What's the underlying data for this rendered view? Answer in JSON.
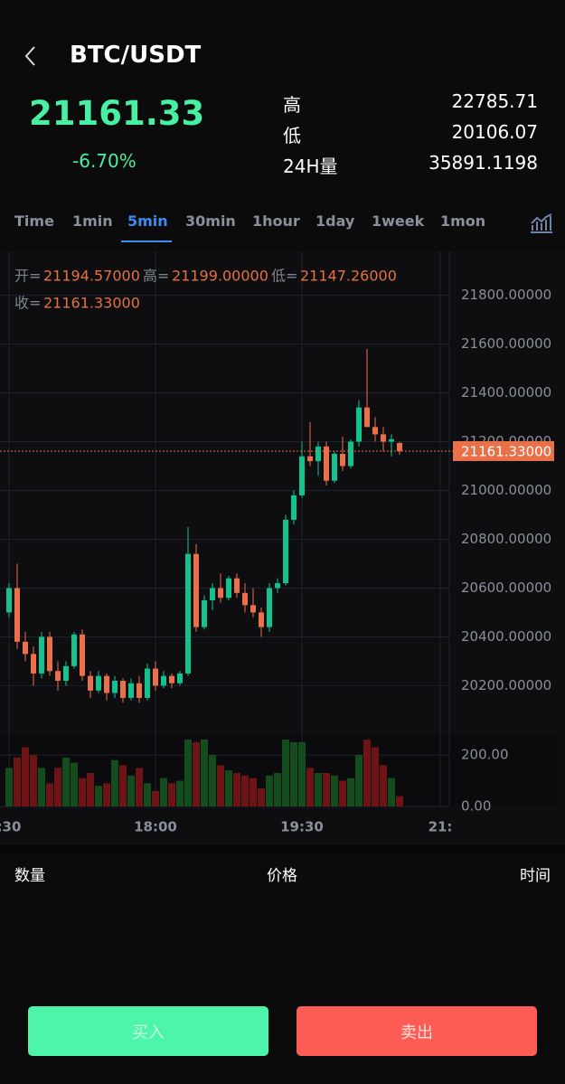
{
  "header": {
    "pair": "BTC/USDT",
    "price": "21161.33",
    "change": "-6.70%",
    "stats": [
      {
        "label": "高",
        "value": "22785.71"
      },
      {
        "label": "低",
        "value": "20106.07"
      },
      {
        "label": "24H量",
        "value": "35891.1198"
      }
    ]
  },
  "tabs": {
    "items": [
      "Time",
      "1min",
      "5min",
      "30min",
      "1hour",
      "1day",
      "1week",
      "1mon"
    ],
    "active": 2
  },
  "chart_data": {
    "type": "candlestick",
    "legend": [
      {
        "name": "开=",
        "value": 21194.57,
        "label": "21194.57000"
      },
      {
        "name": "高=",
        "value": 21199.0,
        "label": "21199.00000"
      },
      {
        "name": "低=",
        "value": 21147.26,
        "label": "21147.26000"
      },
      {
        "name": "收=",
        "value": 21161.33,
        "label": "21161.33000"
      }
    ],
    "last": {
      "value": 21161.33,
      "label": "21161.33000"
    },
    "categories": [
      ":30",
      null,
      null,
      null,
      null,
      null,
      null,
      null,
      null,
      null,
      null,
      null,
      null,
      null,
      null,
      null,
      null,
      null,
      "18:00",
      null,
      null,
      null,
      null,
      null,
      null,
      null,
      null,
      null,
      null,
      null,
      null,
      null,
      null,
      null,
      null,
      null,
      "19:30",
      null,
      null,
      null,
      null,
      null,
      null,
      null,
      null,
      null,
      null,
      null,
      null,
      null,
      null,
      null,
      null,
      "21:"
    ],
    "open": [
      20500,
      20600,
      20380,
      20330,
      20250,
      20400,
      20260,
      20220,
      20280,
      20410,
      20240,
      20180,
      20240,
      20170,
      20220,
      20150,
      20210,
      20150,
      20270,
      20200,
      20240,
      20210,
      20250,
      20740,
      20440,
      20550,
      20600,
      20560,
      20640,
      20580,
      20530,
      20500,
      20440,
      20600,
      20620,
      20880,
      20980,
      21140,
      21120,
      21180,
      21040,
      21150,
      21100,
      21200,
      21340,
      21260,
      21230,
      21200,
      21194.57,
      null,
      null,
      null,
      null,
      null
    ],
    "high": [
      20620,
      20700,
      20420,
      20360,
      20420,
      20420,
      20300,
      20300,
      20420,
      20430,
      20260,
      20260,
      20250,
      20240,
      20230,
      20230,
      20240,
      20290,
      20300,
      20260,
      20250,
      20260,
      20850,
      20780,
      20570,
      20620,
      20660,
      20650,
      20660,
      20620,
      20600,
      20520,
      20620,
      20640,
      20900,
      21000,
      21200,
      21280,
      21200,
      21200,
      21160,
      21220,
      21210,
      21370,
      21580,
      21300,
      21260,
      21230,
      21199,
      null,
      null,
      null,
      null,
      null
    ],
    "low": [
      20480,
      20350,
      20300,
      20200,
      20230,
      20240,
      20180,
      20200,
      20270,
      20220,
      20150,
      20170,
      20140,
      20150,
      20130,
      20140,
      20130,
      20140,
      20180,
      20190,
      20190,
      20200,
      20240,
      20420,
      20430,
      20510,
      20540,
      20550,
      20560,
      20500,
      20480,
      20400,
      20420,
      20580,
      20610,
      20860,
      20970,
      21100,
      21060,
      21020,
      21030,
      21080,
      21090,
      21180,
      21260,
      21200,
      21160,
      21140,
      21147.26,
      null,
      null,
      null,
      null,
      null
    ],
    "close": [
      20600,
      20380,
      20330,
      20250,
      20400,
      20260,
      20220,
      20280,
      20410,
      20240,
      20180,
      20240,
      20170,
      20220,
      20150,
      20210,
      20150,
      20270,
      20200,
      20240,
      20210,
      20250,
      20740,
      20440,
      20550,
      20600,
      20560,
      20640,
      20580,
      20530,
      20500,
      20440,
      20600,
      20620,
      20880,
      20980,
      21140,
      21120,
      21180,
      21040,
      21150,
      21100,
      21200,
      21340,
      21260,
      21230,
      21200,
      21210,
      21161.33,
      null,
      null,
      null,
      null,
      null
    ],
    "up_color": "#13c28d",
    "down_color": "#ea7049",
    "ylim": [
      20020,
      21980
    ],
    "yticks": [
      {
        "value": 20200,
        "label": "20200.00000"
      },
      {
        "value": 20400,
        "label": "20400.00000"
      },
      {
        "value": 20600,
        "label": "20600.00000"
      },
      {
        "value": 20800,
        "label": "20800.00000"
      },
      {
        "value": 21000,
        "label": "21000.00000"
      },
      {
        "value": 21200,
        "label": "21200.00000"
      },
      {
        "value": 21400,
        "label": "21400.00000"
      },
      {
        "value": 21600,
        "label": "21600.00000"
      },
      {
        "value": 21800,
        "label": "21800.00000"
      }
    ],
    "grid": true,
    "volume": {
      "values": [
        150,
        190,
        230,
        200,
        150,
        90,
        150,
        190,
        170,
        110,
        130,
        80,
        90,
        180,
        160,
        120,
        150,
        90,
        60,
        110,
        90,
        100,
        260,
        250,
        260,
        200,
        160,
        140,
        130,
        120,
        110,
        70,
        120,
        130,
        260,
        250,
        250,
        150,
        130,
        130,
        120,
        100,
        110,
        200,
        260,
        230,
        160,
        110,
        40,
        null,
        null,
        null,
        null,
        null
      ],
      "ylim": [
        0,
        260
      ],
      "yticks": [
        {
          "value": 0,
          "label": "0.00"
        },
        {
          "value": 200,
          "label": "200.00"
        }
      ],
      "up_color": "#144d1d",
      "down_color": "#6e1414"
    }
  },
  "trades": {
    "columns": [
      "数量",
      "价格",
      "时间"
    ]
  },
  "buttons": [
    "买入",
    "卖出"
  ]
}
